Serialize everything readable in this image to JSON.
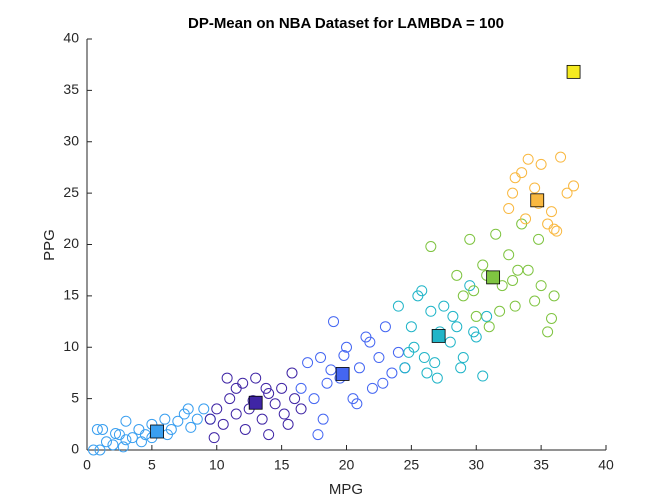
{
  "chart_data": {
    "type": "scatter",
    "title": "DP-Mean on NBA Dataset for LAMBDA = 100",
    "xlabel": "MPG",
    "ylabel": "PPG",
    "xlim": [
      0,
      40
    ],
    "ylim": [
      0,
      40
    ],
    "xticks": [
      0,
      5,
      10,
      15,
      20,
      25,
      30,
      35,
      40
    ],
    "yticks": [
      0,
      5,
      10,
      15,
      20,
      25,
      30,
      35,
      40
    ],
    "series": [
      {
        "color": "#3a9ff0",
        "x": [
          0.5,
          1,
          1.5,
          2,
          2.5,
          3,
          3.5,
          4,
          4.5,
          5,
          5.5,
          6,
          6.5,
          7,
          7.5,
          8,
          8.5,
          9,
          1.2,
          2.8,
          4.2,
          6.2,
          7.8,
          9.5,
          3,
          5,
          0.8,
          2.2
        ],
        "values": [
          0,
          0,
          0.8,
          0.5,
          1.5,
          1,
          1.2,
          2,
          1.5,
          2.5,
          1.8,
          3,
          2,
          2.8,
          3.5,
          2.2,
          3,
          4,
          2,
          0.3,
          0.8,
          1.5,
          4,
          3,
          2.8,
          1.2,
          2,
          1.6
        ],
        "centroid": [
          5.4,
          1.8
        ]
      },
      {
        "color": "#3f25a5",
        "x": [
          9.5,
          10,
          10.5,
          11,
          11.5,
          12,
          12.5,
          13,
          13.5,
          14,
          14.5,
          15,
          15.5,
          16,
          10.8,
          12.2,
          13.8,
          15.2,
          11.5,
          14,
          12.8,
          16.5,
          9.8,
          15.8
        ],
        "values": [
          3,
          4,
          2.5,
          5,
          3.5,
          6.5,
          4,
          7,
          3,
          5.5,
          4.5,
          6,
          2.5,
          5,
          7,
          2,
          6,
          3.5,
          6,
          1.5,
          4.8,
          4,
          1.2,
          7.5
        ],
        "centroid": [
          13,
          4.6
        ]
      },
      {
        "color": "#4466f2",
        "x": [
          16.5,
          17,
          17.5,
          18,
          18.5,
          19,
          19.5,
          20,
          20.5,
          21,
          21.5,
          22,
          22.5,
          23,
          23.5,
          24,
          18.2,
          20.8,
          22.8,
          17.8,
          19.8,
          21.8,
          24.5,
          18.8
        ],
        "values": [
          6,
          8.5,
          5,
          9,
          6.5,
          12.5,
          7,
          10,
          5,
          8,
          11,
          6,
          9,
          12,
          7.5,
          9.5,
          3,
          4.5,
          6.5,
          1.5,
          9.2,
          10.5,
          8,
          7.8
        ],
        "centroid": [
          19.7,
          7.4
        ]
      },
      {
        "color": "#21b5c8",
        "x": [
          24,
          24.5,
          25,
          25.5,
          26,
          26.5,
          27,
          27.5,
          28,
          28.5,
          29,
          29.5,
          30,
          30.5,
          25.2,
          26.8,
          28.2,
          29.8,
          27.2,
          25.8,
          28.8,
          30.8,
          24.8,
          26.2
        ],
        "values": [
          14,
          8,
          12,
          15,
          9,
          13.5,
          7,
          14,
          10.5,
          12,
          9,
          16,
          11,
          7.2,
          10,
          8.5,
          13,
          11.5,
          11.5,
          15.5,
          8,
          13,
          9.5,
          7.5
        ],
        "centroid": [
          27.1,
          11.1
        ]
      },
      {
        "color": "#7fc441",
        "x": [
          28.5,
          29,
          29.5,
          30,
          30.5,
          31,
          31.5,
          32,
          32.5,
          33,
          33.5,
          34,
          34.5,
          35,
          35.5,
          36,
          26.5,
          29.8,
          31.8,
          33.2,
          34.8,
          30.8,
          32.8,
          35.8
        ],
        "values": [
          17,
          15,
          20.5,
          13,
          18,
          12,
          21,
          16,
          19,
          14,
          22,
          17.5,
          14.5,
          16,
          11.5,
          15,
          19.8,
          15.5,
          13.5,
          17.5,
          20.5,
          17,
          16.5,
          12.8
        ],
        "centroid": [
          31.3,
          16.8
        ]
      },
      {
        "color": "#f9b840",
        "x": [
          32.5,
          33,
          33.5,
          34,
          34.5,
          35,
          35.5,
          36,
          36.5,
          37,
          37.5,
          33.8,
          34.8,
          35.8,
          32.8,
          36.2
        ],
        "values": [
          23.5,
          26.5,
          27,
          28.3,
          25.5,
          27.8,
          22,
          21.5,
          28.5,
          25,
          25.7,
          22.5,
          24,
          23.2,
          25,
          21.3
        ],
        "centroid": [
          34.7,
          24.3
        ]
      },
      {
        "color": "#f5ea20",
        "x": [],
        "values": [],
        "centroid": [
          37.5,
          36.8
        ]
      }
    ]
  }
}
